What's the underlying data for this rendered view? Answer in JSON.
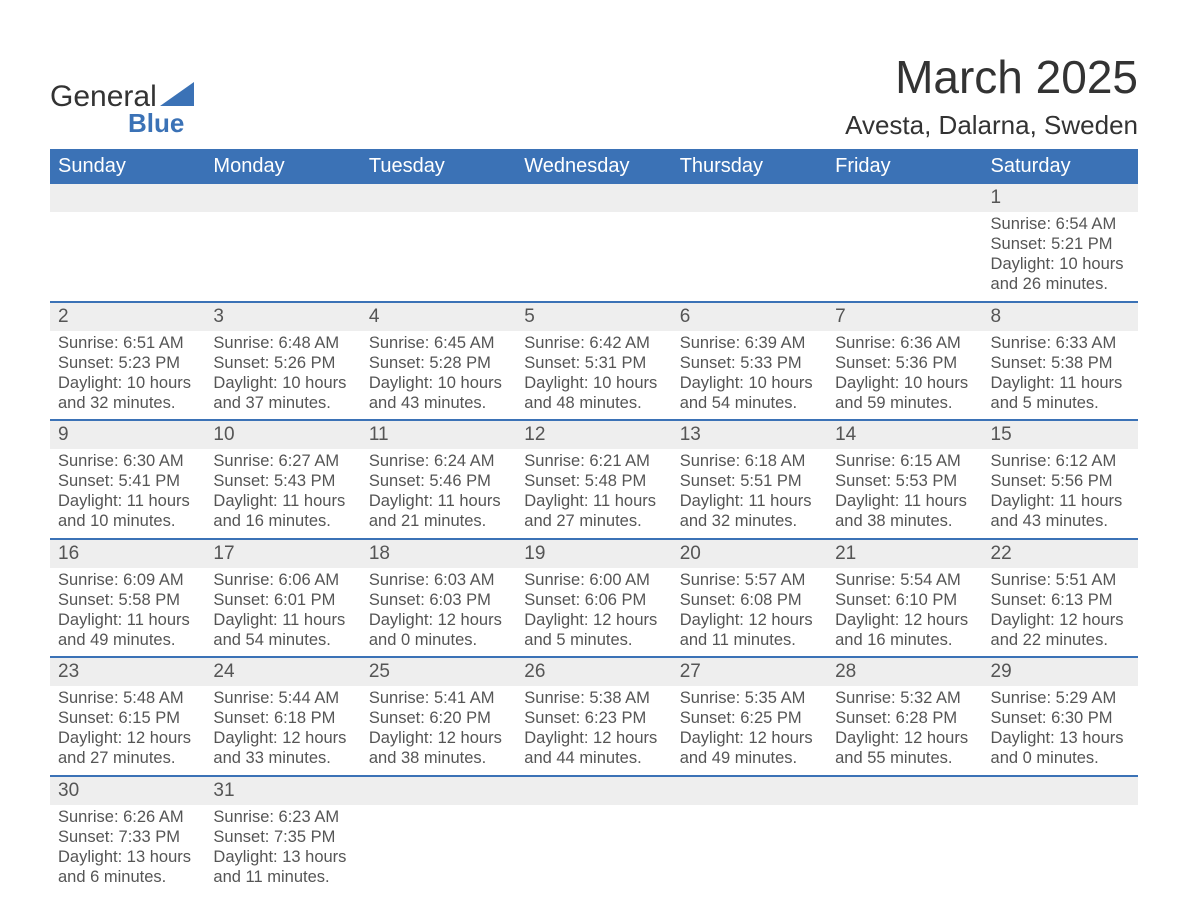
{
  "logo": {
    "word1": "General",
    "word2": "Blue",
    "accent_color": "#3b72b6"
  },
  "title": "March 2025",
  "location": "Avesta, Dalarna, Sweden",
  "colors": {
    "header_bg": "#3b72b6",
    "header_text": "#ffffff",
    "daynum_bg": "#eeeeee",
    "row_divider": "#3b72b6",
    "body_text": "#555555",
    "page_bg": "#ffffff"
  },
  "typography": {
    "title_fontsize": 46,
    "location_fontsize": 26,
    "weekday_fontsize": 20,
    "daynum_fontsize": 19,
    "cell_fontsize": 16.5
  },
  "layout": {
    "columns": 7,
    "rows": 6,
    "aspect_w": 1188,
    "aspect_h": 918
  },
  "weekdays": [
    "Sunday",
    "Monday",
    "Tuesday",
    "Wednesday",
    "Thursday",
    "Friday",
    "Saturday"
  ],
  "weeks": [
    [
      null,
      null,
      null,
      null,
      null,
      null,
      {
        "n": "1",
        "sunrise": "6:54 AM",
        "sunset": "5:21 PM",
        "daylight": "10 hours and 26 minutes."
      }
    ],
    [
      {
        "n": "2",
        "sunrise": "6:51 AM",
        "sunset": "5:23 PM",
        "daylight": "10 hours and 32 minutes."
      },
      {
        "n": "3",
        "sunrise": "6:48 AM",
        "sunset": "5:26 PM",
        "daylight": "10 hours and 37 minutes."
      },
      {
        "n": "4",
        "sunrise": "6:45 AM",
        "sunset": "5:28 PM",
        "daylight": "10 hours and 43 minutes."
      },
      {
        "n": "5",
        "sunrise": "6:42 AM",
        "sunset": "5:31 PM",
        "daylight": "10 hours and 48 minutes."
      },
      {
        "n": "6",
        "sunrise": "6:39 AM",
        "sunset": "5:33 PM",
        "daylight": "10 hours and 54 minutes."
      },
      {
        "n": "7",
        "sunrise": "6:36 AM",
        "sunset": "5:36 PM",
        "daylight": "10 hours and 59 minutes."
      },
      {
        "n": "8",
        "sunrise": "6:33 AM",
        "sunset": "5:38 PM",
        "daylight": "11 hours and 5 minutes."
      }
    ],
    [
      {
        "n": "9",
        "sunrise": "6:30 AM",
        "sunset": "5:41 PM",
        "daylight": "11 hours and 10 minutes."
      },
      {
        "n": "10",
        "sunrise": "6:27 AM",
        "sunset": "5:43 PM",
        "daylight": "11 hours and 16 minutes."
      },
      {
        "n": "11",
        "sunrise": "6:24 AM",
        "sunset": "5:46 PM",
        "daylight": "11 hours and 21 minutes."
      },
      {
        "n": "12",
        "sunrise": "6:21 AM",
        "sunset": "5:48 PM",
        "daylight": "11 hours and 27 minutes."
      },
      {
        "n": "13",
        "sunrise": "6:18 AM",
        "sunset": "5:51 PM",
        "daylight": "11 hours and 32 minutes."
      },
      {
        "n": "14",
        "sunrise": "6:15 AM",
        "sunset": "5:53 PM",
        "daylight": "11 hours and 38 minutes."
      },
      {
        "n": "15",
        "sunrise": "6:12 AM",
        "sunset": "5:56 PM",
        "daylight": "11 hours and 43 minutes."
      }
    ],
    [
      {
        "n": "16",
        "sunrise": "6:09 AM",
        "sunset": "5:58 PM",
        "daylight": "11 hours and 49 minutes."
      },
      {
        "n": "17",
        "sunrise": "6:06 AM",
        "sunset": "6:01 PM",
        "daylight": "11 hours and 54 minutes."
      },
      {
        "n": "18",
        "sunrise": "6:03 AM",
        "sunset": "6:03 PM",
        "daylight": "12 hours and 0 minutes."
      },
      {
        "n": "19",
        "sunrise": "6:00 AM",
        "sunset": "6:06 PM",
        "daylight": "12 hours and 5 minutes."
      },
      {
        "n": "20",
        "sunrise": "5:57 AM",
        "sunset": "6:08 PM",
        "daylight": "12 hours and 11 minutes."
      },
      {
        "n": "21",
        "sunrise": "5:54 AM",
        "sunset": "6:10 PM",
        "daylight": "12 hours and 16 minutes."
      },
      {
        "n": "22",
        "sunrise": "5:51 AM",
        "sunset": "6:13 PM",
        "daylight": "12 hours and 22 minutes."
      }
    ],
    [
      {
        "n": "23",
        "sunrise": "5:48 AM",
        "sunset": "6:15 PM",
        "daylight": "12 hours and 27 minutes."
      },
      {
        "n": "24",
        "sunrise": "5:44 AM",
        "sunset": "6:18 PM",
        "daylight": "12 hours and 33 minutes."
      },
      {
        "n": "25",
        "sunrise": "5:41 AM",
        "sunset": "6:20 PM",
        "daylight": "12 hours and 38 minutes."
      },
      {
        "n": "26",
        "sunrise": "5:38 AM",
        "sunset": "6:23 PM",
        "daylight": "12 hours and 44 minutes."
      },
      {
        "n": "27",
        "sunrise": "5:35 AM",
        "sunset": "6:25 PM",
        "daylight": "12 hours and 49 minutes."
      },
      {
        "n": "28",
        "sunrise": "5:32 AM",
        "sunset": "6:28 PM",
        "daylight": "12 hours and 55 minutes."
      },
      {
        "n": "29",
        "sunrise": "5:29 AM",
        "sunset": "6:30 PM",
        "daylight": "13 hours and 0 minutes."
      }
    ],
    [
      {
        "n": "30",
        "sunrise": "6:26 AM",
        "sunset": "7:33 PM",
        "daylight": "13 hours and 6 minutes."
      },
      {
        "n": "31",
        "sunrise": "6:23 AM",
        "sunset": "7:35 PM",
        "daylight": "13 hours and 11 minutes."
      },
      null,
      null,
      null,
      null,
      null
    ]
  ],
  "labels": {
    "sunrise": "Sunrise: ",
    "sunset": "Sunset: ",
    "daylight": "Daylight: "
  }
}
